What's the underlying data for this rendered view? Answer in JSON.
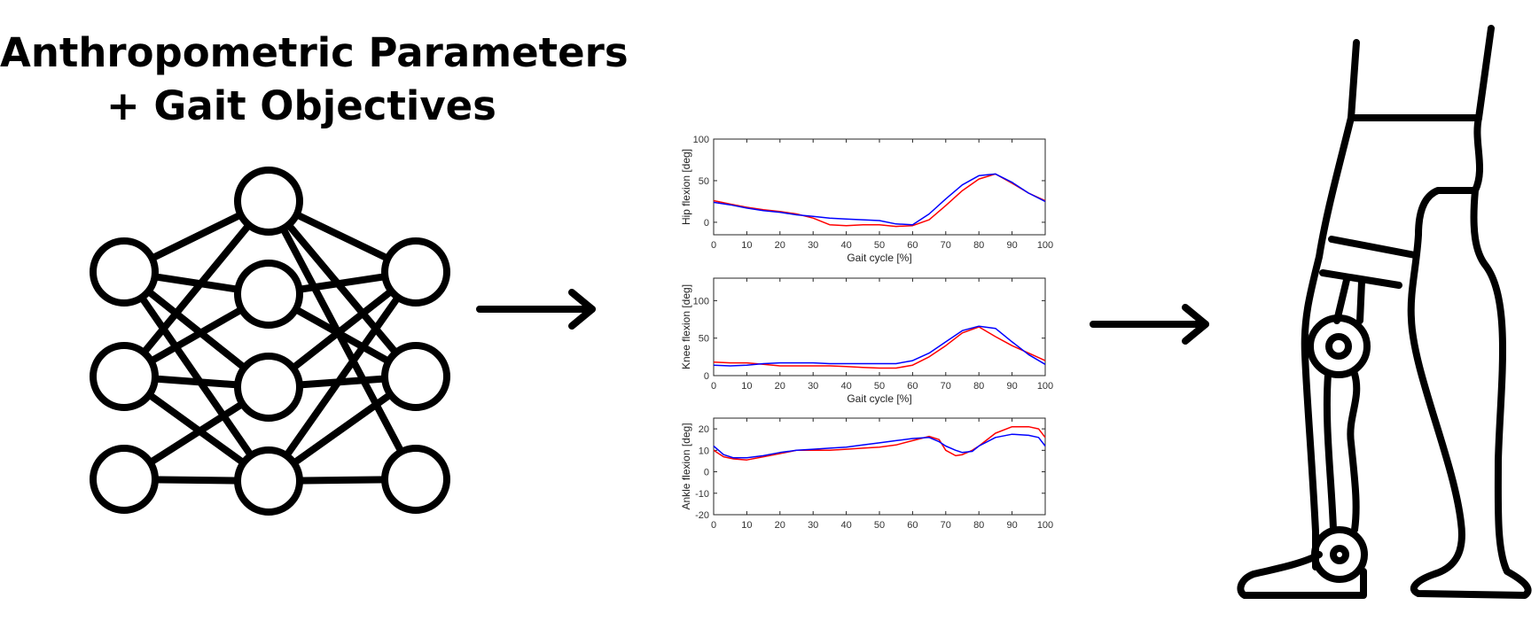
{
  "title": {
    "line1": "Anthropometric Parameters",
    "line2": "+ Gait Objectives"
  },
  "colors": {
    "ink": "#000000",
    "series_red": "#ff0000",
    "series_blue": "#0000ff"
  },
  "chart_data": [
    {
      "type": "line",
      "xlabel": "Gait cycle [%]",
      "ylabel": "Hip flexion [deg]",
      "xlim": [
        0,
        100
      ],
      "ylim": [
        -15,
        100
      ],
      "xticks": [
        0,
        10,
        20,
        30,
        40,
        50,
        60,
        70,
        80,
        90,
        100
      ],
      "yticks": [
        0,
        50,
        100
      ],
      "series": [
        {
          "color": "red",
          "x": [
            0,
            5,
            10,
            15,
            20,
            25,
            30,
            35,
            40,
            45,
            50,
            55,
            60,
            65,
            70,
            75,
            80,
            85,
            90,
            95,
            100
          ],
          "y": [
            26,
            22,
            18,
            15,
            13,
            10,
            5,
            -3,
            -4,
            -3,
            -3,
            -5,
            -4,
            3,
            20,
            38,
            52,
            58,
            47,
            35,
            26
          ]
        },
        {
          "color": "blue",
          "x": [
            0,
            5,
            10,
            15,
            20,
            25,
            30,
            35,
            40,
            45,
            50,
            55,
            60,
            65,
            70,
            75,
            80,
            85,
            90,
            95,
            100
          ],
          "y": [
            24,
            21,
            17,
            14,
            12,
            9,
            7,
            5,
            4,
            3,
            2,
            -2,
            -3,
            10,
            28,
            45,
            56,
            58,
            48,
            35,
            25
          ]
        }
      ]
    },
    {
      "type": "line",
      "xlabel": "Gait cycle [%]",
      "ylabel": "Knee flexion [deg]",
      "xlim": [
        0,
        100
      ],
      "ylim": [
        0,
        130
      ],
      "xticks": [
        0,
        10,
        20,
        30,
        40,
        50,
        60,
        70,
        80,
        90,
        100
      ],
      "yticks": [
        0,
        50,
        100
      ],
      "series": [
        {
          "color": "red",
          "x": [
            0,
            5,
            10,
            15,
            20,
            25,
            30,
            35,
            40,
            45,
            50,
            55,
            60,
            65,
            70,
            75,
            80,
            85,
            90,
            95,
            100
          ],
          "y": [
            18,
            17,
            17,
            15,
            13,
            13,
            13,
            13,
            12,
            11,
            10,
            10,
            14,
            25,
            40,
            57,
            65,
            52,
            40,
            30,
            20
          ]
        },
        {
          "color": "blue",
          "x": [
            0,
            5,
            10,
            15,
            20,
            25,
            30,
            35,
            40,
            45,
            50,
            55,
            60,
            65,
            70,
            75,
            80,
            85,
            90,
            95,
            100
          ],
          "y": [
            14,
            13,
            14,
            16,
            17,
            17,
            17,
            16,
            16,
            16,
            16,
            16,
            20,
            30,
            45,
            60,
            66,
            63,
            45,
            28,
            15
          ]
        }
      ]
    },
    {
      "type": "line",
      "xlabel": "",
      "ylabel": "Ankle flexion [deg]",
      "xlim": [
        0,
        100
      ],
      "ylim": [
        -20,
        25
      ],
      "xticks": [
        0,
        10,
        20,
        30,
        40,
        50,
        60,
        70,
        80,
        90,
        100
      ],
      "yticks": [
        -20,
        -10,
        0,
        10,
        20
      ],
      "series": [
        {
          "color": "red",
          "x": [
            0,
            3,
            6,
            10,
            15,
            20,
            25,
            30,
            35,
            40,
            45,
            50,
            55,
            60,
            65,
            68,
            70,
            73,
            75,
            78,
            80,
            85,
            90,
            95,
            98,
            100
          ],
          "y": [
            10,
            7,
            6,
            5.5,
            7,
            8.5,
            10,
            10,
            10,
            10.5,
            11,
            11.5,
            12.5,
            14.5,
            16.5,
            15,
            10,
            7.5,
            8,
            10,
            12,
            18,
            21,
            21,
            20,
            16
          ]
        },
        {
          "color": "blue",
          "x": [
            0,
            3,
            6,
            10,
            15,
            20,
            25,
            30,
            35,
            40,
            45,
            50,
            55,
            60,
            65,
            68,
            70,
            73,
            75,
            78,
            80,
            85,
            90,
            95,
            98,
            100
          ],
          "y": [
            12,
            8,
            6.5,
            6.5,
            7.5,
            9,
            10,
            10.5,
            11,
            11.5,
            12.5,
            13.5,
            14.5,
            15.5,
            16,
            14,
            12,
            10,
            9,
            9.5,
            12,
            16,
            17.5,
            17,
            16,
            12
          ]
        }
      ]
    }
  ]
}
